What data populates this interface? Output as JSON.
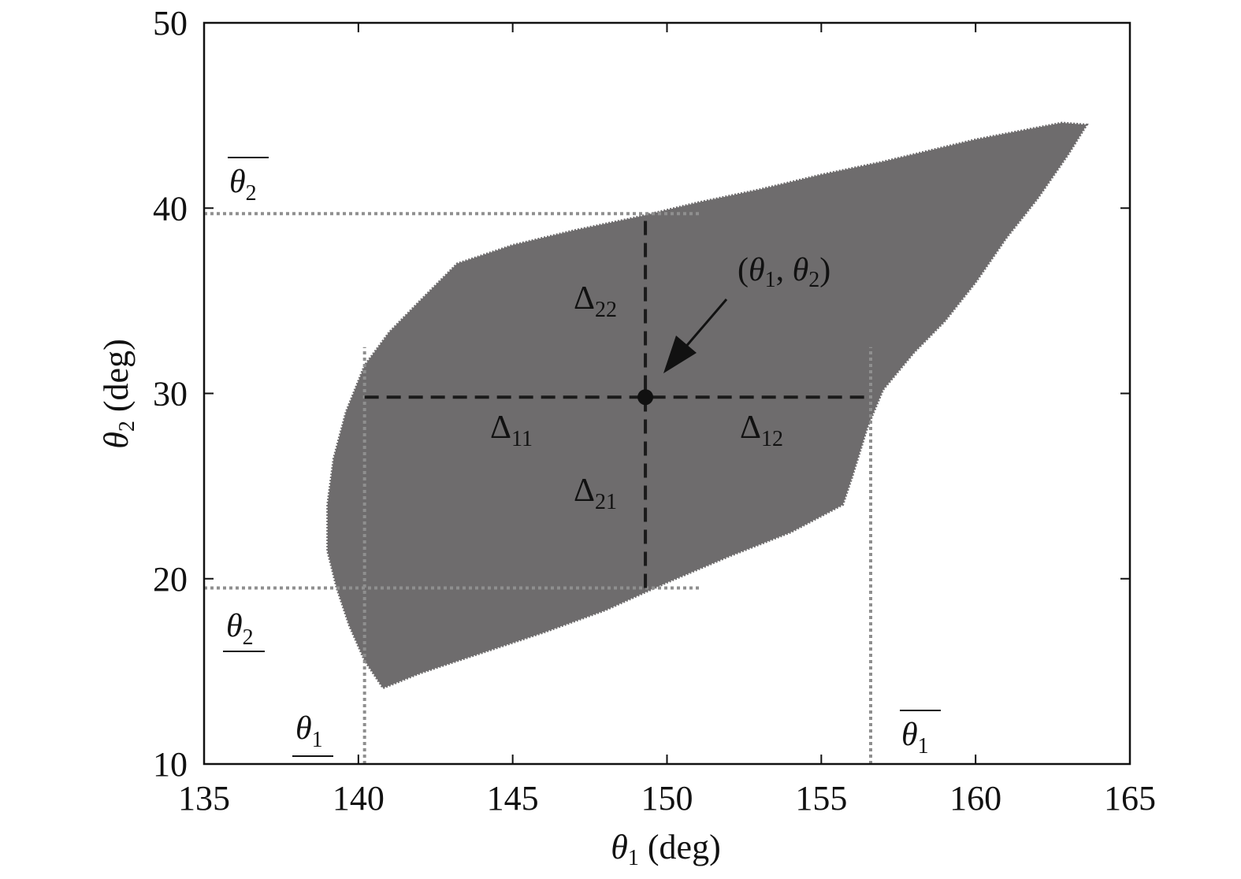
{
  "chart_data": {
    "type": "area",
    "xlabel_symbol": "θ",
    "xlabel_sub": "1",
    "xlabel_unit": " (deg)",
    "ylabel_symbol": "θ",
    "ylabel_sub": "2",
    "ylabel_unit": " (deg)",
    "xlim": [
      135,
      165
    ],
    "ylim": [
      10,
      50
    ],
    "xticks": [
      135,
      140,
      145,
      150,
      155,
      160,
      165
    ],
    "yticks": [
      10,
      20,
      30,
      40,
      50
    ],
    "fill_color": "#6e6c6d",
    "region": [
      [
        140.8,
        14.1
      ],
      [
        142.0,
        14.9
      ],
      [
        144.0,
        16.0
      ],
      [
        146.0,
        17.1
      ],
      [
        148.0,
        18.3
      ],
      [
        150.0,
        19.8
      ],
      [
        152.0,
        21.2
      ],
      [
        154.0,
        22.5
      ],
      [
        155.7,
        24.0
      ],
      [
        156.0,
        25.5
      ],
      [
        156.5,
        28.2
      ],
      [
        157.0,
        30.2
      ],
      [
        158.0,
        32.2
      ],
      [
        159.0,
        33.9
      ],
      [
        160.0,
        36.0
      ],
      [
        161.0,
        38.4
      ],
      [
        162.0,
        40.5
      ],
      [
        163.0,
        42.9
      ],
      [
        163.6,
        44.5
      ],
      [
        162.8,
        44.6
      ],
      [
        160.0,
        43.7
      ],
      [
        157.0,
        42.5
      ],
      [
        155.0,
        41.8
      ],
      [
        153.0,
        41.0
      ],
      [
        151.0,
        40.3
      ],
      [
        149.0,
        39.5
      ],
      [
        147.0,
        38.8
      ],
      [
        145.0,
        38.0
      ],
      [
        143.2,
        37.0
      ],
      [
        142.0,
        35.0
      ],
      [
        141.0,
        33.3
      ],
      [
        140.2,
        31.5
      ],
      [
        139.6,
        29.0
      ],
      [
        139.2,
        26.5
      ],
      [
        139.0,
        24.0
      ],
      [
        139.0,
        21.5
      ],
      [
        139.3,
        19.5
      ],
      [
        139.7,
        17.5
      ],
      [
        140.2,
        15.6
      ]
    ],
    "center": [
      149.3,
      29.8
    ],
    "dashed_horizontal": {
      "y": 29.8,
      "x_from": 140.2,
      "x_to": 156.6
    },
    "dashed_vertical": {
      "x": 149.3,
      "y_from": 19.5,
      "y_to": 39.7
    },
    "dotted_horizontal": [
      {
        "y": 39.7,
        "x_from": 135.0,
        "x_to": 151.1
      },
      {
        "y": 19.5,
        "x_from": 135.0,
        "x_to": 151.1
      }
    ],
    "dotted_vertical": [
      {
        "x": 140.2,
        "y_from": 10.0,
        "y_to": 32.5
      },
      {
        "x": 156.6,
        "y_from": 10.0,
        "y_to": 32.5
      }
    ],
    "annotations": {
      "point_label": {
        "open": "(",
        "sym1": "θ",
        "sub1": "1",
        "comma": ", ",
        "sym2": "θ",
        "sub2": "2",
        "close": ")"
      },
      "delta_11": {
        "sym": "Δ",
        "sub": "11"
      },
      "delta_12": {
        "sym": "Δ",
        "sub": "12"
      },
      "delta_21": {
        "sym": "Δ",
        "sub": "21"
      },
      "delta_22": {
        "sym": "Δ",
        "sub": "22"
      },
      "theta2_upper": {
        "sym": "θ",
        "sub": "2"
      },
      "theta2_lower": {
        "sym": "θ",
        "sub": "2"
      },
      "theta1_lower": {
        "sym": "θ",
        "sub": "1"
      },
      "theta1_upper": {
        "sym": "θ",
        "sub": "1"
      }
    }
  }
}
